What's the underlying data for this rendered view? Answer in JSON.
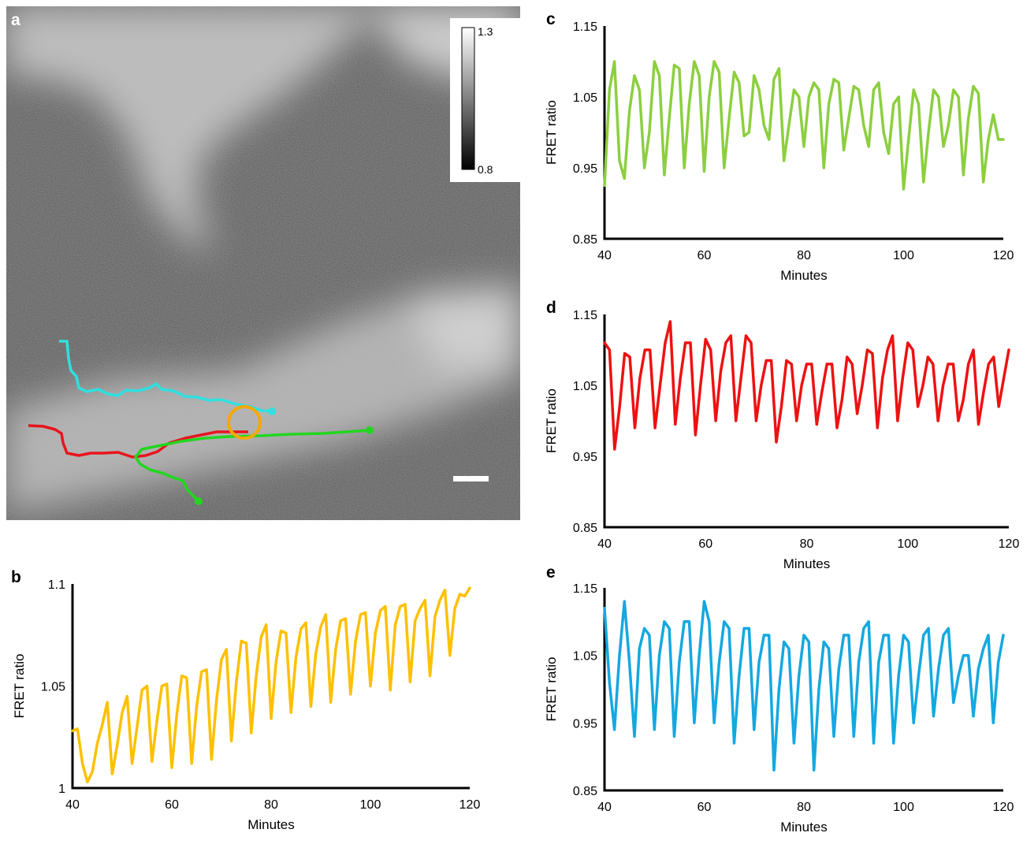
{
  "panel_letters": {
    "a": "a",
    "b": "b",
    "c": "c",
    "d": "d",
    "e": "e"
  },
  "colors": {
    "cyan_track": "#2fe0e0",
    "red_track": "#e8141c",
    "green_track": "#22d620",
    "roi_circle": "#f5a800",
    "b_line": "#ffc000",
    "c_line": "#8ccf3f",
    "d_line": "#ee1111",
    "e_line": "#14a8e0"
  },
  "colorbar": {
    "max_label": "1.3",
    "min_label": "0.8"
  },
  "chart_data": [
    {
      "panel": "b",
      "type": "line",
      "xlabel": "Minutes",
      "ylabel": "FRET ratio",
      "xlim": [
        40,
        120
      ],
      "ylim": [
        1,
        1.1
      ],
      "xticks": [
        "40",
        "60",
        "80",
        "100",
        "120"
      ],
      "yticks": [
        "1",
        "1.05",
        "1.1"
      ],
      "x": [
        40,
        41,
        42,
        43,
        44,
        45,
        46,
        47,
        48,
        49,
        50,
        51,
        52,
        53,
        54,
        55,
        56,
        57,
        58,
        59,
        60,
        61,
        62,
        63,
        64,
        65,
        66,
        67,
        68,
        69,
        70,
        71,
        72,
        73,
        74,
        75,
        76,
        77,
        78,
        79,
        80,
        81,
        82,
        83,
        84,
        85,
        86,
        87,
        88,
        89,
        90,
        91,
        92,
        93,
        94,
        95,
        96,
        97,
        98,
        99,
        100,
        101,
        102,
        103,
        104,
        105,
        106,
        107,
        108,
        109,
        110,
        111,
        112,
        113,
        114,
        115,
        116,
        117,
        118,
        119,
        120
      ],
      "series": [
        {
          "values": [
            1.028,
            1.029,
            1.012,
            1.003,
            1.008,
            1.022,
            1.031,
            1.042,
            1.007,
            1.021,
            1.037,
            1.045,
            1.012,
            1.03,
            1.048,
            1.05,
            1.013,
            1.033,
            1.05,
            1.051,
            1.01,
            1.036,
            1.055,
            1.054,
            1.012,
            1.04,
            1.057,
            1.058,
            1.014,
            1.043,
            1.063,
            1.068,
            1.023,
            1.052,
            1.072,
            1.071,
            1.027,
            1.055,
            1.074,
            1.08,
            1.034,
            1.062,
            1.077,
            1.076,
            1.037,
            1.064,
            1.078,
            1.081,
            1.04,
            1.066,
            1.079,
            1.085,
            1.042,
            1.068,
            1.082,
            1.083,
            1.046,
            1.072,
            1.085,
            1.086,
            1.05,
            1.076,
            1.087,
            1.089,
            1.048,
            1.08,
            1.089,
            1.09,
            1.052,
            1.082,
            1.088,
            1.092,
            1.055,
            1.084,
            1.092,
            1.097,
            1.065,
            1.088,
            1.095,
            1.094,
            1.098
          ]
        }
      ]
    },
    {
      "panel": "c",
      "type": "line",
      "xlabel": "Minutes",
      "ylabel": "FRET ratio",
      "xlim": [
        40,
        120
      ],
      "ylim": [
        0.85,
        1.15
      ],
      "xticks": [
        "40",
        "60",
        "80",
        "100",
        "120"
      ],
      "yticks": [
        "0.85",
        "0.95",
        "1.05",
        "1.15"
      ],
      "x": [
        40,
        41,
        42,
        43,
        44,
        45,
        46,
        47,
        48,
        49,
        50,
        51,
        52,
        53,
        54,
        55,
        56,
        57,
        58,
        59,
        60,
        61,
        62,
        63,
        64,
        65,
        66,
        67,
        68,
        69,
        70,
        71,
        72,
        73,
        74,
        75,
        76,
        77,
        78,
        79,
        80,
        81,
        82,
        83,
        84,
        85,
        86,
        87,
        88,
        89,
        90,
        91,
        92,
        93,
        94,
        95,
        96,
        97,
        98,
        99,
        100,
        101,
        102,
        103,
        104,
        105,
        106,
        107,
        108,
        109,
        110,
        111,
        112,
        113,
        114,
        115,
        116,
        117,
        118,
        119,
        120
      ],
      "series": [
        {
          "values": [
            0.925,
            1.06,
            1.1,
            0.96,
            0.935,
            1.03,
            1.08,
            1.06,
            0.95,
            1.0,
            1.1,
            1.08,
            0.94,
            1.02,
            1.095,
            1.09,
            0.95,
            1.04,
            1.1,
            1.08,
            0.945,
            1.05,
            1.1,
            1.085,
            0.95,
            1.02,
            1.085,
            1.07,
            0.995,
            1.0,
            1.08,
            1.06,
            1.01,
            0.99,
            1.075,
            1.09,
            0.96,
            1.01,
            1.06,
            1.05,
            0.98,
            1.05,
            1.07,
            1.06,
            0.95,
            1.04,
            1.075,
            1.07,
            0.975,
            1.02,
            1.065,
            1.06,
            1.01,
            0.98,
            1.06,
            1.07,
            1.0,
            0.97,
            1.04,
            1.05,
            0.92,
            0.99,
            1.06,
            1.04,
            0.93,
            1.0,
            1.06,
            1.05,
            0.98,
            1.01,
            1.06,
            1.05,
            0.94,
            1.02,
            1.065,
            1.055,
            0.93,
            0.99,
            1.025,
            0.99,
            0.99
          ]
        }
      ]
    },
    {
      "panel": "d",
      "type": "line",
      "xlabel": "Minutes",
      "ylabel": "FRET ratio",
      "xlim": [
        40,
        120
      ],
      "ylim": [
        0.85,
        1.15
      ],
      "xticks": [
        "40",
        "60",
        "80",
        "100",
        "120"
      ],
      "yticks": [
        "0.85",
        "0.95",
        "1.05",
        "1.15"
      ],
      "x": [
        40,
        41,
        42,
        43,
        44,
        45,
        46,
        47,
        48,
        49,
        50,
        51,
        52,
        53,
        54,
        55,
        56,
        57,
        58,
        59,
        60,
        61,
        62,
        63,
        64,
        65,
        66,
        67,
        68,
        69,
        70,
        71,
        72,
        73,
        74,
        75,
        76,
        77,
        78,
        79,
        80,
        81,
        82,
        83,
        84,
        85,
        86,
        87,
        88,
        89,
        90,
        91,
        92,
        93,
        94,
        95,
        96,
        97,
        98,
        99,
        100,
        101,
        102,
        103,
        104,
        105,
        106,
        107,
        108,
        109,
        110,
        111,
        112,
        113,
        114,
        115,
        116,
        117,
        118,
        119,
        120
      ],
      "series": [
        {
          "values": [
            1.11,
            1.1,
            0.96,
            1.02,
            1.095,
            1.09,
            0.99,
            1.06,
            1.1,
            1.1,
            0.99,
            1.05,
            1.11,
            1.14,
            0.995,
            1.06,
            1.11,
            1.11,
            0.98,
            1.05,
            1.115,
            1.1,
            1.0,
            1.07,
            1.11,
            1.12,
            1.0,
            1.06,
            1.12,
            1.11,
            1.0,
            1.05,
            1.085,
            1.085,
            0.97,
            1.02,
            1.085,
            1.08,
            1.0,
            1.05,
            1.08,
            1.08,
            0.995,
            1.04,
            1.08,
            1.08,
            0.99,
            1.03,
            1.09,
            1.08,
            1.01,
            1.05,
            1.1,
            1.095,
            0.99,
            1.06,
            1.1,
            1.12,
            1.0,
            1.06,
            1.11,
            1.1,
            1.02,
            1.05,
            1.09,
            1.08,
            1.0,
            1.05,
            1.08,
            1.08,
            1.0,
            1.03,
            1.08,
            1.1,
            0.995,
            1.04,
            1.08,
            1.09,
            1.02,
            1.06,
            1.1
          ]
        }
      ]
    },
    {
      "panel": "e",
      "type": "line",
      "xlabel": "Minutes",
      "ylabel": "FRET ratio",
      "xlim": [
        40,
        120
      ],
      "ylim": [
        0.85,
        1.15
      ],
      "xticks": [
        "40",
        "60",
        "80",
        "100",
        "120"
      ],
      "yticks": [
        "0.85",
        "0.95",
        "1.05",
        "1.15"
      ],
      "x": [
        40,
        41,
        42,
        43,
        44,
        45,
        46,
        47,
        48,
        49,
        50,
        51,
        52,
        53,
        54,
        55,
        56,
        57,
        58,
        59,
        60,
        61,
        62,
        63,
        64,
        65,
        66,
        67,
        68,
        69,
        70,
        71,
        72,
        73,
        74,
        75,
        76,
        77,
        78,
        79,
        80,
        81,
        82,
        83,
        84,
        85,
        86,
        87,
        88,
        89,
        90,
        91,
        92,
        93,
        94,
        95,
        96,
        97,
        98,
        99,
        100,
        101,
        102,
        103,
        104,
        105,
        106,
        107,
        108,
        109,
        110,
        111,
        112,
        113,
        114,
        115,
        116,
        117,
        118,
        119,
        120
      ],
      "series": [
        {
          "values": [
            1.12,
            1.01,
            0.94,
            1.05,
            1.13,
            1.04,
            0.93,
            1.06,
            1.09,
            1.08,
            0.94,
            1.05,
            1.1,
            1.09,
            0.93,
            1.04,
            1.1,
            1.1,
            0.95,
            1.05,
            1.13,
            1.1,
            0.95,
            1.04,
            1.1,
            1.09,
            0.92,
            1.02,
            1.09,
            1.09,
            0.94,
            1.04,
            1.08,
            1.08,
            0.88,
            1.0,
            1.07,
            1.06,
            0.92,
            1.02,
            1.08,
            1.07,
            0.88,
            1.0,
            1.07,
            1.06,
            0.93,
            1.03,
            1.08,
            1.08,
            0.93,
            1.04,
            1.09,
            1.1,
            0.92,
            1.04,
            1.08,
            1.08,
            0.92,
            1.02,
            1.08,
            1.07,
            0.95,
            1.02,
            1.08,
            1.09,
            0.96,
            1.03,
            1.08,
            1.09,
            0.98,
            1.02,
            1.05,
            1.05,
            0.96,
            1.03,
            1.06,
            1.08,
            0.95,
            1.04,
            1.08
          ]
        }
      ]
    }
  ]
}
